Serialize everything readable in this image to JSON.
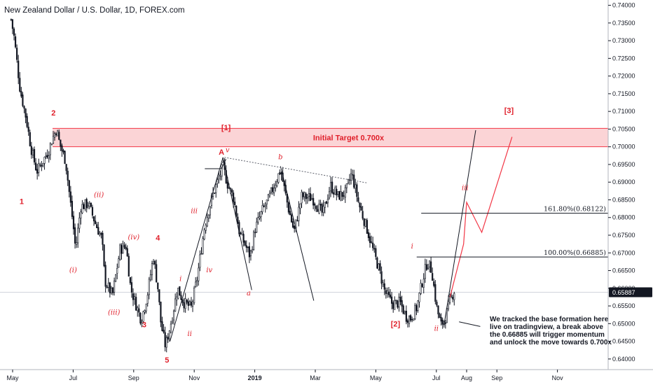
{
  "header": {
    "title": "New Zealand Dollar / U.S. Dollar, 1D, FOREX.com"
  },
  "chart_data": {
    "type": "candlestick",
    "symbol": "NZDUSD",
    "timeframe": "1D",
    "x_tick_labels": [
      "May",
      "Jul",
      "Sep",
      "Nov",
      "2019",
      "Mar",
      "May",
      "Jul",
      "Aug",
      "Sep",
      "Nov"
    ],
    "x_tick_months": [
      0,
      2,
      4,
      6,
      8,
      10,
      12,
      14,
      15,
      16,
      18
    ],
    "y_tick_labels": [
      "0.74000",
      "0.73500",
      "0.73000",
      "0.72500",
      "0.72000",
      "0.71500",
      "0.71000",
      "0.70500",
      "0.70000",
      "0.69500",
      "0.69000",
      "0.68500",
      "0.68000",
      "0.67500",
      "0.67000",
      "0.66500",
      "0.66000",
      "0.65500",
      "0.65000",
      "0.64500",
      "0.64000"
    ],
    "ylim": [
      0.637,
      0.7415
    ],
    "last_price": "0.65887",
    "last_price_value": 0.65887,
    "price_path": [
      [
        -0.05,
        0.736
      ],
      [
        0.05,
        0.731
      ],
      [
        0.25,
        0.716
      ],
      [
        0.45,
        0.708
      ],
      [
        0.6,
        0.7
      ],
      [
        0.8,
        0.693
      ],
      [
        1.0,
        0.696
      ],
      [
        1.2,
        0.699
      ],
      [
        1.3,
        0.702
      ],
      [
        1.45,
        0.705
      ],
      [
        1.55,
        0.701
      ],
      [
        1.75,
        0.696
      ],
      [
        1.9,
        0.685
      ],
      [
        2.0,
        0.678
      ],
      [
        2.08,
        0.671
      ],
      [
        2.25,
        0.683
      ],
      [
        2.5,
        0.684
      ],
      [
        2.75,
        0.678
      ],
      [
        2.95,
        0.674
      ],
      [
        3.05,
        0.662
      ],
      [
        3.3,
        0.658
      ],
      [
        3.55,
        0.671
      ],
      [
        3.75,
        0.672
      ],
      [
        3.9,
        0.66
      ],
      [
        4.05,
        0.656
      ],
      [
        4.25,
        0.651
      ],
      [
        4.45,
        0.658
      ],
      [
        4.65,
        0.669
      ],
      [
        4.8,
        0.66
      ],
      [
        4.9,
        0.65
      ],
      [
        5.05,
        0.6435
      ],
      [
        5.25,
        0.651
      ],
      [
        5.45,
        0.66
      ],
      [
        5.65,
        0.656
      ],
      [
        5.9,
        0.6545
      ],
      [
        6.1,
        0.663
      ],
      [
        6.35,
        0.678
      ],
      [
        6.6,
        0.686
      ],
      [
        6.95,
        0.6945
      ],
      [
        7.1,
        0.6895
      ],
      [
        7.3,
        0.6855
      ],
      [
        7.5,
        0.6755
      ],
      [
        7.7,
        0.672
      ],
      [
        7.85,
        0.669
      ],
      [
        8.0,
        0.6765
      ],
      [
        8.25,
        0.682
      ],
      [
        8.45,
        0.685
      ],
      [
        8.85,
        0.6935
      ],
      [
        9.1,
        0.683
      ],
      [
        9.3,
        0.676
      ],
      [
        9.55,
        0.686
      ],
      [
        9.9,
        0.6855
      ],
      [
        10.25,
        0.681
      ],
      [
        10.5,
        0.689
      ],
      [
        10.75,
        0.686
      ],
      [
        11.0,
        0.687
      ],
      [
        11.2,
        0.6925
      ],
      [
        11.45,
        0.6835
      ],
      [
        11.7,
        0.677
      ],
      [
        11.9,
        0.671
      ],
      [
        12.1,
        0.6655
      ],
      [
        12.3,
        0.659
      ],
      [
        12.55,
        0.6555
      ],
      [
        12.8,
        0.656
      ],
      [
        13.0,
        0.652
      ],
      [
        13.15,
        0.6515
      ],
      [
        13.35,
        0.6545
      ],
      [
        13.55,
        0.6625
      ],
      [
        13.7,
        0.6675
      ],
      [
        13.85,
        0.665
      ],
      [
        14.0,
        0.655
      ],
      [
        14.15,
        0.6495
      ],
      [
        14.3,
        0.6515
      ],
      [
        14.45,
        0.6565
      ],
      [
        14.6,
        0.6595
      ]
    ],
    "swing_lines": [
      {
        "from": [
          5.2,
          0.645
        ],
        "to": [
          6.95,
          0.697
        ],
        "color": "#131722"
      },
      {
        "from": [
          6.95,
          0.697
        ],
        "to": [
          7.9,
          0.6595
        ],
        "color": "#131722"
      },
      {
        "from": [
          8.85,
          0.6945
        ],
        "to": [
          9.95,
          0.6565
        ],
        "color": "#131722"
      },
      {
        "from": [
          14.25,
          0.6495
        ],
        "to": [
          15.3,
          0.7047
        ],
        "color": "#131722"
      }
    ],
    "trendline": {
      "from": [
        7.0,
        0.697
      ],
      "to": [
        11.7,
        0.6898
      ],
      "color": "#5d606b",
      "style": "dotted"
    },
    "level_lines": [
      {
        "from": [
          6.35,
          0.6938
        ],
        "to": [
          6.9,
          0.6938
        ]
      },
      {
        "from": [
          6.9,
          0.6938
        ],
        "to": [
          7.05,
          0.6965
        ]
      }
    ],
    "projection": {
      "color": "#f23645",
      "points": [
        [
          14.45,
          0.6575
        ],
        [
          14.9,
          0.6725
        ],
        [
          15.0,
          0.6843
        ],
        [
          15.5,
          0.6758
        ],
        [
          16.5,
          0.7028
        ]
      ]
    },
    "target_zone": {
      "label": "Initial Target 0.700x",
      "y_low": 0.7,
      "y_high": 0.7052,
      "fill": "#f9c6c8",
      "border": "#f23645"
    },
    "fib_levels": [
      {
        "label": "161.80%(0.68122)",
        "value": 0.68122,
        "x_start": 13.5
      },
      {
        "label": "100.00%(0.66885)",
        "value": 0.66885,
        "x_start": 13.35
      }
    ],
    "wave_labels": [
      {
        "text": "1",
        "x": 0.3,
        "y": 0.6838,
        "style": "bold"
      },
      {
        "text": "2",
        "x": 1.35,
        "y": 0.7088,
        "style": "bold"
      },
      {
        "text": "(i)",
        "x": 2.0,
        "y": 0.6645,
        "style": "italic"
      },
      {
        "text": "(ii)",
        "x": 2.85,
        "y": 0.6858,
        "style": "italic"
      },
      {
        "text": "(iii)",
        "x": 3.35,
        "y": 0.6525,
        "style": "italic"
      },
      {
        "text": "(iv)",
        "x": 4.0,
        "y": 0.6738,
        "style": "italic"
      },
      {
        "text": "3",
        "x": 4.35,
        "y": 0.649,
        "style": "bold"
      },
      {
        "text": "4",
        "x": 4.8,
        "y": 0.6735,
        "style": "bold"
      },
      {
        "text": "5",
        "x": 5.1,
        "y": 0.639,
        "style": "bold"
      },
      {
        "text": "i",
        "x": 5.55,
        "y": 0.662,
        "style": "italic"
      },
      {
        "text": "ii",
        "x": 5.85,
        "y": 0.6465,
        "style": "italic"
      },
      {
        "text": "iii",
        "x": 6.0,
        "y": 0.6812,
        "style": "italic"
      },
      {
        "text": "iv",
        "x": 6.5,
        "y": 0.6645,
        "style": "italic"
      },
      {
        "text": "A",
        "x": 6.9,
        "y": 0.6978,
        "style": "bold"
      },
      {
        "text": "v",
        "x": 7.1,
        "y": 0.6985,
        "style": "italic"
      },
      {
        "text": "[1]",
        "x": 7.05,
        "y": 0.7047,
        "style": "bold"
      },
      {
        "text": "a",
        "x": 7.8,
        "y": 0.658,
        "style": "italic"
      },
      {
        "text": "b",
        "x": 8.85,
        "y": 0.6965,
        "style": "italic"
      },
      {
        "text": "[2]",
        "x": 12.65,
        "y": 0.6492,
        "style": "bold"
      },
      {
        "text": "i",
        "x": 13.2,
        "y": 0.6712,
        "style": "italic"
      },
      {
        "text": "ii",
        "x": 14.0,
        "y": 0.648,
        "style": "italic"
      },
      {
        "text": "iii",
        "x": 14.95,
        "y": 0.6878,
        "style": "italic"
      },
      {
        "text": "[3]",
        "x": 16.4,
        "y": 0.7095,
        "style": "bold"
      }
    ],
    "annotation": {
      "lines": [
        "We tracked the base formation here",
        "live on tradingview, a break above",
        "the 0.66885 will trigger momentum",
        "and unlock the move towards 0.700x"
      ],
      "pointer_from": [
        14.75,
        0.6505
      ],
      "pointer_to": [
        15.45,
        0.6492
      ]
    },
    "crosshair_value": 0.65887,
    "colors": {
      "candles": "#131722",
      "waves": "#e0202b",
      "accent": "#f23645",
      "axis": "#131722"
    }
  }
}
